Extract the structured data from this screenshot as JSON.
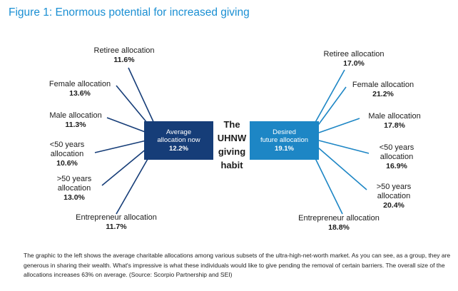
{
  "title": "Figure 1: Enormous potential for increased giving",
  "center_label": [
    "The",
    "UHNW",
    "giving",
    "habit"
  ],
  "left_box": {
    "line1": "Average",
    "line2": "allocation now",
    "value": "12.2%"
  },
  "right_box": {
    "line1": "Desired",
    "line2": "future allocation",
    "value": "19.1%"
  },
  "left_labels": [
    {
      "name": "Retiree allocation",
      "value": "11.6%"
    },
    {
      "name": "Female allocation",
      "value": "13.6%"
    },
    {
      "name": "Male allocation",
      "value": "11.3%"
    },
    {
      "name": "<50 years allocation",
      "line1": "<50 years",
      "line2": "allocation",
      "value": "10.6%"
    },
    {
      "name": ">50 years allocation",
      "line1": ">50 years",
      "line2": "allocation",
      "value": "13.0%"
    },
    {
      "name": "Entrepreneur allocation",
      "value": "11.7%"
    }
  ],
  "right_labels": [
    {
      "name": "Retiree allocation",
      "value": "17.0%"
    },
    {
      "name": "Female allocation",
      "value": "21.2%"
    },
    {
      "name": "Male allocation",
      "value": "17.8%"
    },
    {
      "name": "<50 years allocation",
      "line1": "<50 years",
      "line2": "allocation",
      "value": "16.9%"
    },
    {
      "name": ">50 years allocation",
      "line1": ">50 years",
      "line2": "allocation",
      "value": "20.4%"
    },
    {
      "name": "Entrepreneur allocation",
      "value": "18.8%"
    }
  ],
  "caption": "The graphic to the left shows the average charitable allocations among various subsets of the ultra-high-net-worth market. As you can see, as a group, they are generous in sharing their wealth. What's impressive is what these individuals would like to give pending the removal of certain barriers. The overall size of the allocations increases 63% on average. (Source: Scorpio Partnership and SEI)",
  "colors": {
    "title": "#1a8fd3",
    "left_box": "#163d78",
    "right_box": "#1d86c5",
    "left_lines": "#163d78",
    "right_lines": "#1d86c5"
  }
}
